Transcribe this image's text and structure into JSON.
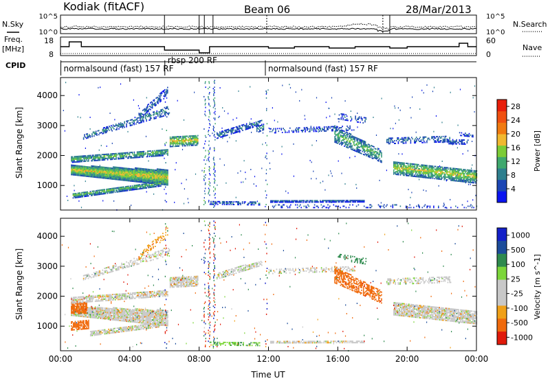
{
  "header": {
    "station": "Kodiak (fitACF)",
    "beam": "Beam 06",
    "date": "28/Mar/2013"
  },
  "left_labels": {
    "nsky": "N.Sky",
    "freq": "Freq.",
    "freq_unit": "[MHz]",
    "cpid": "CPID"
  },
  "right_labels": {
    "nsearch": "N.Search",
    "nave": "Nave"
  },
  "noise_axis": {
    "left_ticks": [
      "10^5",
      "10^0"
    ],
    "right_ticks": [
      "10^5",
      "10^0"
    ]
  },
  "freq_axis": {
    "left_ticks": [
      "18",
      "8"
    ],
    "right_ticks": [
      "60",
      "0"
    ]
  },
  "cpid_labels": [
    {
      "text": "normalsound (fast) 157 RF",
      "start_hour": 0.1
    },
    {
      "text": "rbsp 200 RF",
      "start_hour": 6.1
    },
    {
      "text": "normalsound (fast) 157 RF",
      "start_hour": 11.9
    }
  ],
  "colors": {
    "power_scale": [
      "#0a14f0",
      "#1c46b4",
      "#2e7f8e",
      "#3fa86e",
      "#7ccc36",
      "#f0b830",
      "#f07a10",
      "#f05010",
      "#e81e0a"
    ],
    "velocity_scale": [
      "#1420c8",
      "#1c4c9a",
      "#2e8a4e",
      "#7cd63a",
      "#c8c8c8",
      "#c8c8c8",
      "#f0a018",
      "#f06a0c",
      "#e01a0a"
    ]
  },
  "chart_data": [
    {
      "type": "heatmap",
      "panel": "power",
      "ylabel": "Slant Range [km]",
      "x_ticks": [
        "00:00",
        "04:00",
        "08:00",
        "12:00",
        "16:00",
        "20:00",
        "00:00"
      ],
      "xlim_hours": [
        0,
        24
      ],
      "ylim_km": [
        180,
        4600
      ],
      "y_ticks": [
        1000,
        2000,
        3000,
        4000
      ],
      "colorbar_label": "Power [dB]",
      "colorbar_ticks": [
        4,
        8,
        12,
        16,
        20,
        24,
        28
      ],
      "colorbar_range": [
        0,
        30
      ],
      "bands": [
        {
          "h0": 0.6,
          "h1": 6.2,
          "r0": 1500,
          "r1": 1250,
          "w0": 320,
          "w1": 520,
          "p": 15,
          "d": 1
        },
        {
          "h0": 0.6,
          "h1": 6.2,
          "r0": 1850,
          "r1": 2100,
          "w0": 200,
          "w1": 220,
          "p": 11,
          "d": 0.8
        },
        {
          "h0": 1.3,
          "h1": 6.3,
          "r0": 2600,
          "r1": 3500,
          "w0": 150,
          "w1": 280,
          "p": 8,
          "d": 0.5
        },
        {
          "h0": 4.5,
          "h1": 6.2,
          "r0": 3300,
          "r1": 4150,
          "w0": 200,
          "w1": 300,
          "p": 6,
          "d": 0.45
        },
        {
          "h0": 0.7,
          "h1": 5.8,
          "r0": 650,
          "r1": 1050,
          "w0": 180,
          "w1": 170,
          "p": 11,
          "d": 0.85
        },
        {
          "h0": 6.3,
          "h1": 7.9,
          "r0": 2450,
          "r1": 2500,
          "w0": 350,
          "w1": 350,
          "p": 15,
          "d": 0.8
        },
        {
          "h0": 9.0,
          "h1": 11.6,
          "r0": 2650,
          "r1": 3100,
          "w0": 200,
          "w1": 170,
          "p": 7,
          "d": 0.65
        },
        {
          "h0": 11.3,
          "h1": 11.7,
          "r0": 2850,
          "r1": 2950,
          "w0": 220,
          "w1": 220,
          "p": 8,
          "d": 0.55
        },
        {
          "h0": 8.6,
          "h1": 11.5,
          "r0": 400,
          "r1": 380,
          "w0": 100,
          "w1": 100,
          "p": 7,
          "d": 0.5
        },
        {
          "h0": 12.0,
          "h1": 17.0,
          "r0": 2800,
          "r1": 2900,
          "w0": 140,
          "w1": 140,
          "p": 6,
          "d": 0.35
        },
        {
          "h0": 12.1,
          "h1": 17.5,
          "r0": 460,
          "r1": 470,
          "w0": 80,
          "w1": 80,
          "p": 6,
          "d": 0.8
        },
        {
          "h0": 12.1,
          "h1": 24.0,
          "r0": 300,
          "r1": 300,
          "w0": 120,
          "w1": 120,
          "p": 5,
          "d": 0.18
        },
        {
          "h0": 15.8,
          "h1": 18.5,
          "r0": 2700,
          "r1": 1950,
          "w0": 550,
          "w1": 400,
          "p": 11,
          "d": 0.65
        },
        {
          "h0": 16.0,
          "h1": 17.6,
          "r0": 3300,
          "r1": 3150,
          "w0": 200,
          "w1": 200,
          "p": 6,
          "d": 0.3
        },
        {
          "h0": 19.2,
          "h1": 24.0,
          "r0": 1580,
          "r1": 1280,
          "w0": 450,
          "w1": 450,
          "p": 14,
          "d": 0.8
        },
        {
          "h0": 18.8,
          "h1": 22.5,
          "r0": 2480,
          "r1": 2550,
          "w0": 220,
          "w1": 220,
          "p": 7,
          "d": 0.45
        },
        {
          "h0": 22.0,
          "h1": 23.5,
          "r0": 2450,
          "r1": 2430,
          "w0": 150,
          "w1": 150,
          "p": 6,
          "d": 0.5
        },
        {
          "h0": 23.0,
          "h1": 23.8,
          "r0": 2700,
          "r1": 2650,
          "w0": 100,
          "w1": 100,
          "p": 5,
          "d": 0.4
        }
      ]
    },
    {
      "type": "heatmap",
      "panel": "velocity",
      "xlabel": "Time UT",
      "ylabel": "Slant Range [km]",
      "x_ticks": [
        "00:00",
        "04:00",
        "08:00",
        "12:00",
        "16:00",
        "20:00",
        "00:00"
      ],
      "xlim_hours": [
        0,
        24
      ],
      "ylim_km": [
        180,
        4600
      ],
      "y_ticks": [
        1000,
        2000,
        3000,
        4000
      ],
      "colorbar_label": "Velocity [m s^-1]",
      "colorbar_ticks": [
        "1000",
        "500",
        "100",
        "25",
        "-25",
        "-100",
        "-500",
        "-1000"
      ],
      "bands": [
        {
          "h0": 0.6,
          "h1": 6.2,
          "r0": 1500,
          "r1": 1250,
          "w0": 320,
          "w1": 520,
          "v": 0,
          "d": 0.9
        },
        {
          "h0": 0.6,
          "h1": 1.5,
          "r0": 1600,
          "r1": 1600,
          "w0": 380,
          "w1": 380,
          "v": -300,
          "d": 0.8
        },
        {
          "h0": 0.6,
          "h1": 1.6,
          "r0": 1000,
          "r1": 1050,
          "w0": 300,
          "w1": 300,
          "v": -250,
          "d": 0.7
        },
        {
          "h0": 0.6,
          "h1": 6.2,
          "r0": 1850,
          "r1": 2100,
          "w0": 200,
          "w1": 220,
          "v": 0,
          "d": 0.7
        },
        {
          "h0": 1.3,
          "h1": 6.3,
          "r0": 2600,
          "r1": 3500,
          "w0": 150,
          "w1": 280,
          "v": 0,
          "d": 0.45
        },
        {
          "h0": 4.5,
          "h1": 6.2,
          "r0": 3300,
          "r1": 4150,
          "w0": 200,
          "w1": 300,
          "v": -80,
          "d": 0.35
        },
        {
          "h0": 1.7,
          "h1": 5.8,
          "r0": 750,
          "r1": 1050,
          "w0": 180,
          "w1": 170,
          "v": 0,
          "d": 0.8
        },
        {
          "h0": 6.3,
          "h1": 7.9,
          "r0": 2450,
          "r1": 2500,
          "w0": 350,
          "w1": 350,
          "v": 0,
          "d": 0.8
        },
        {
          "h0": 9.0,
          "h1": 11.6,
          "r0": 2650,
          "r1": 3100,
          "w0": 200,
          "w1": 170,
          "v": 0,
          "d": 0.6
        },
        {
          "h0": 8.6,
          "h1": 11.5,
          "r0": 400,
          "r1": 380,
          "w0": 100,
          "w1": 100,
          "v": 90,
          "d": 0.45
        },
        {
          "h0": 12.0,
          "h1": 17.0,
          "r0": 2800,
          "r1": 2900,
          "w0": 140,
          "w1": 140,
          "v": 0,
          "d": 0.35
        },
        {
          "h0": 12.1,
          "h1": 17.5,
          "r0": 460,
          "r1": 470,
          "w0": 80,
          "w1": 80,
          "v": 0,
          "d": 0.7
        },
        {
          "h0": 15.8,
          "h1": 18.5,
          "r0": 2700,
          "r1": 1950,
          "w0": 550,
          "w1": 400,
          "v": -300,
          "d": 0.6
        },
        {
          "h0": 16.0,
          "h1": 17.6,
          "r0": 3300,
          "r1": 3150,
          "w0": 200,
          "w1": 200,
          "v": 150,
          "d": 0.3
        },
        {
          "h0": 19.2,
          "h1": 24.0,
          "r0": 1580,
          "r1": 1280,
          "w0": 450,
          "w1": 450,
          "v": 0,
          "d": 0.85
        },
        {
          "h0": 18.8,
          "h1": 22.5,
          "r0": 2480,
          "r1": 2550,
          "w0": 220,
          "w1": 220,
          "v": 0,
          "d": 0.4
        }
      ]
    }
  ],
  "axis_labels": {
    "xlabel": "Time UT"
  }
}
